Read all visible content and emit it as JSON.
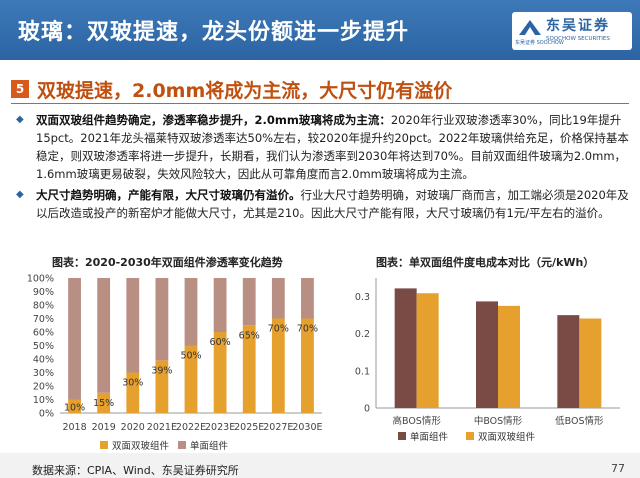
{
  "header": {
    "title": "玻璃：双玻提速，龙头份额进一步提升",
    "logo_name": "东吴证券",
    "logo_en": "SOOCHOW SECURITIES",
    "logo_sub": "东吴证券 SOOCHOW",
    "bg_color": "#2c64a3"
  },
  "section": {
    "number": "5",
    "title": "双玻提速，2.0mm将成为主流，大尺寸仍有溢价",
    "accent_color": "#d85a1a"
  },
  "paragraphs": [
    {
      "lead": "双面双玻组件趋势确定，渗透率稳步提升，2.0mm玻璃将成为主流：",
      "body": "2020年行业双玻渗透率30%，同比19年提升15pct。2021年龙头福莱特双玻渗透率达50%左右，较2020年提升约20pct。2022年玻璃供给充足，价格保持基本稳定，则双玻渗透率将进一步提升，长期看，我们认为渗透率到2030年将达到70%。目前双面组件玻璃为2.0mm，1.6mm玻璃更易破裂，失效风险较大，因此从可靠角度而言2.0mm玻璃将成为主流。"
    },
    {
      "lead": "大尺寸趋势明确，产能有限，大尺寸玻璃仍有溢价。",
      "body": "行业大尺寸趋势明确，对玻璃厂商而言，加工端必须是2020年及以后改造或投产的新窑炉才能做大尺寸，尤其是210。因此大尺寸产能有限，大尺寸玻璃仍有1元/平左右的溢价。"
    }
  ],
  "chart_data": [
    {
      "type": "bar",
      "stacked": true,
      "title": "图表：2020-2030年双面组件渗透率变化趋势",
      "categories": [
        "2018",
        "2019",
        "2020",
        "2021E",
        "2022E",
        "2023E",
        "2025E",
        "2027E",
        "2030E"
      ],
      "series": [
        {
          "name": "双面双玻组件",
          "values": [
            10,
            15,
            30,
            39,
            50,
            60,
            65,
            70,
            70
          ],
          "color": "#e5a02e"
        },
        {
          "name": "单面组件",
          "values": [
            90,
            85,
            70,
            61,
            50,
            40,
            35,
            30,
            30
          ],
          "color": "#b98e83"
        }
      ],
      "data_labels": [
        "10%",
        "15%",
        "30%",
        "39%",
        "50%",
        "60%",
        "65%",
        "70%",
        "70%"
      ],
      "yticks": [
        "0%",
        "10%",
        "20%",
        "30%",
        "40%",
        "50%",
        "60%",
        "70%",
        "80%",
        "90%",
        "100%"
      ],
      "ylim": [
        0,
        100
      ],
      "legend_position": "bottom"
    },
    {
      "type": "bar",
      "title": "图表：单双面组件度电成本对比（元/kWh）",
      "categories": [
        "高BOS情形",
        "中BOS情形",
        "低BOS情形"
      ],
      "series": [
        {
          "name": "单面组件",
          "values": [
            0.322,
            0.287,
            0.25
          ],
          "color": "#7a4b45"
        },
        {
          "name": "双面双玻组件",
          "values": [
            0.309,
            0.275,
            0.241
          ],
          "color": "#e5a02e"
        }
      ],
      "yticks": [
        "0",
        "0.1",
        "0.2",
        "0.3"
      ],
      "ylim": [
        0,
        0.35
      ],
      "legend_position": "bottom"
    }
  ],
  "footer": {
    "source": "数据来源：CPIA、Wind、东吴证券研究所",
    "page": "77"
  }
}
